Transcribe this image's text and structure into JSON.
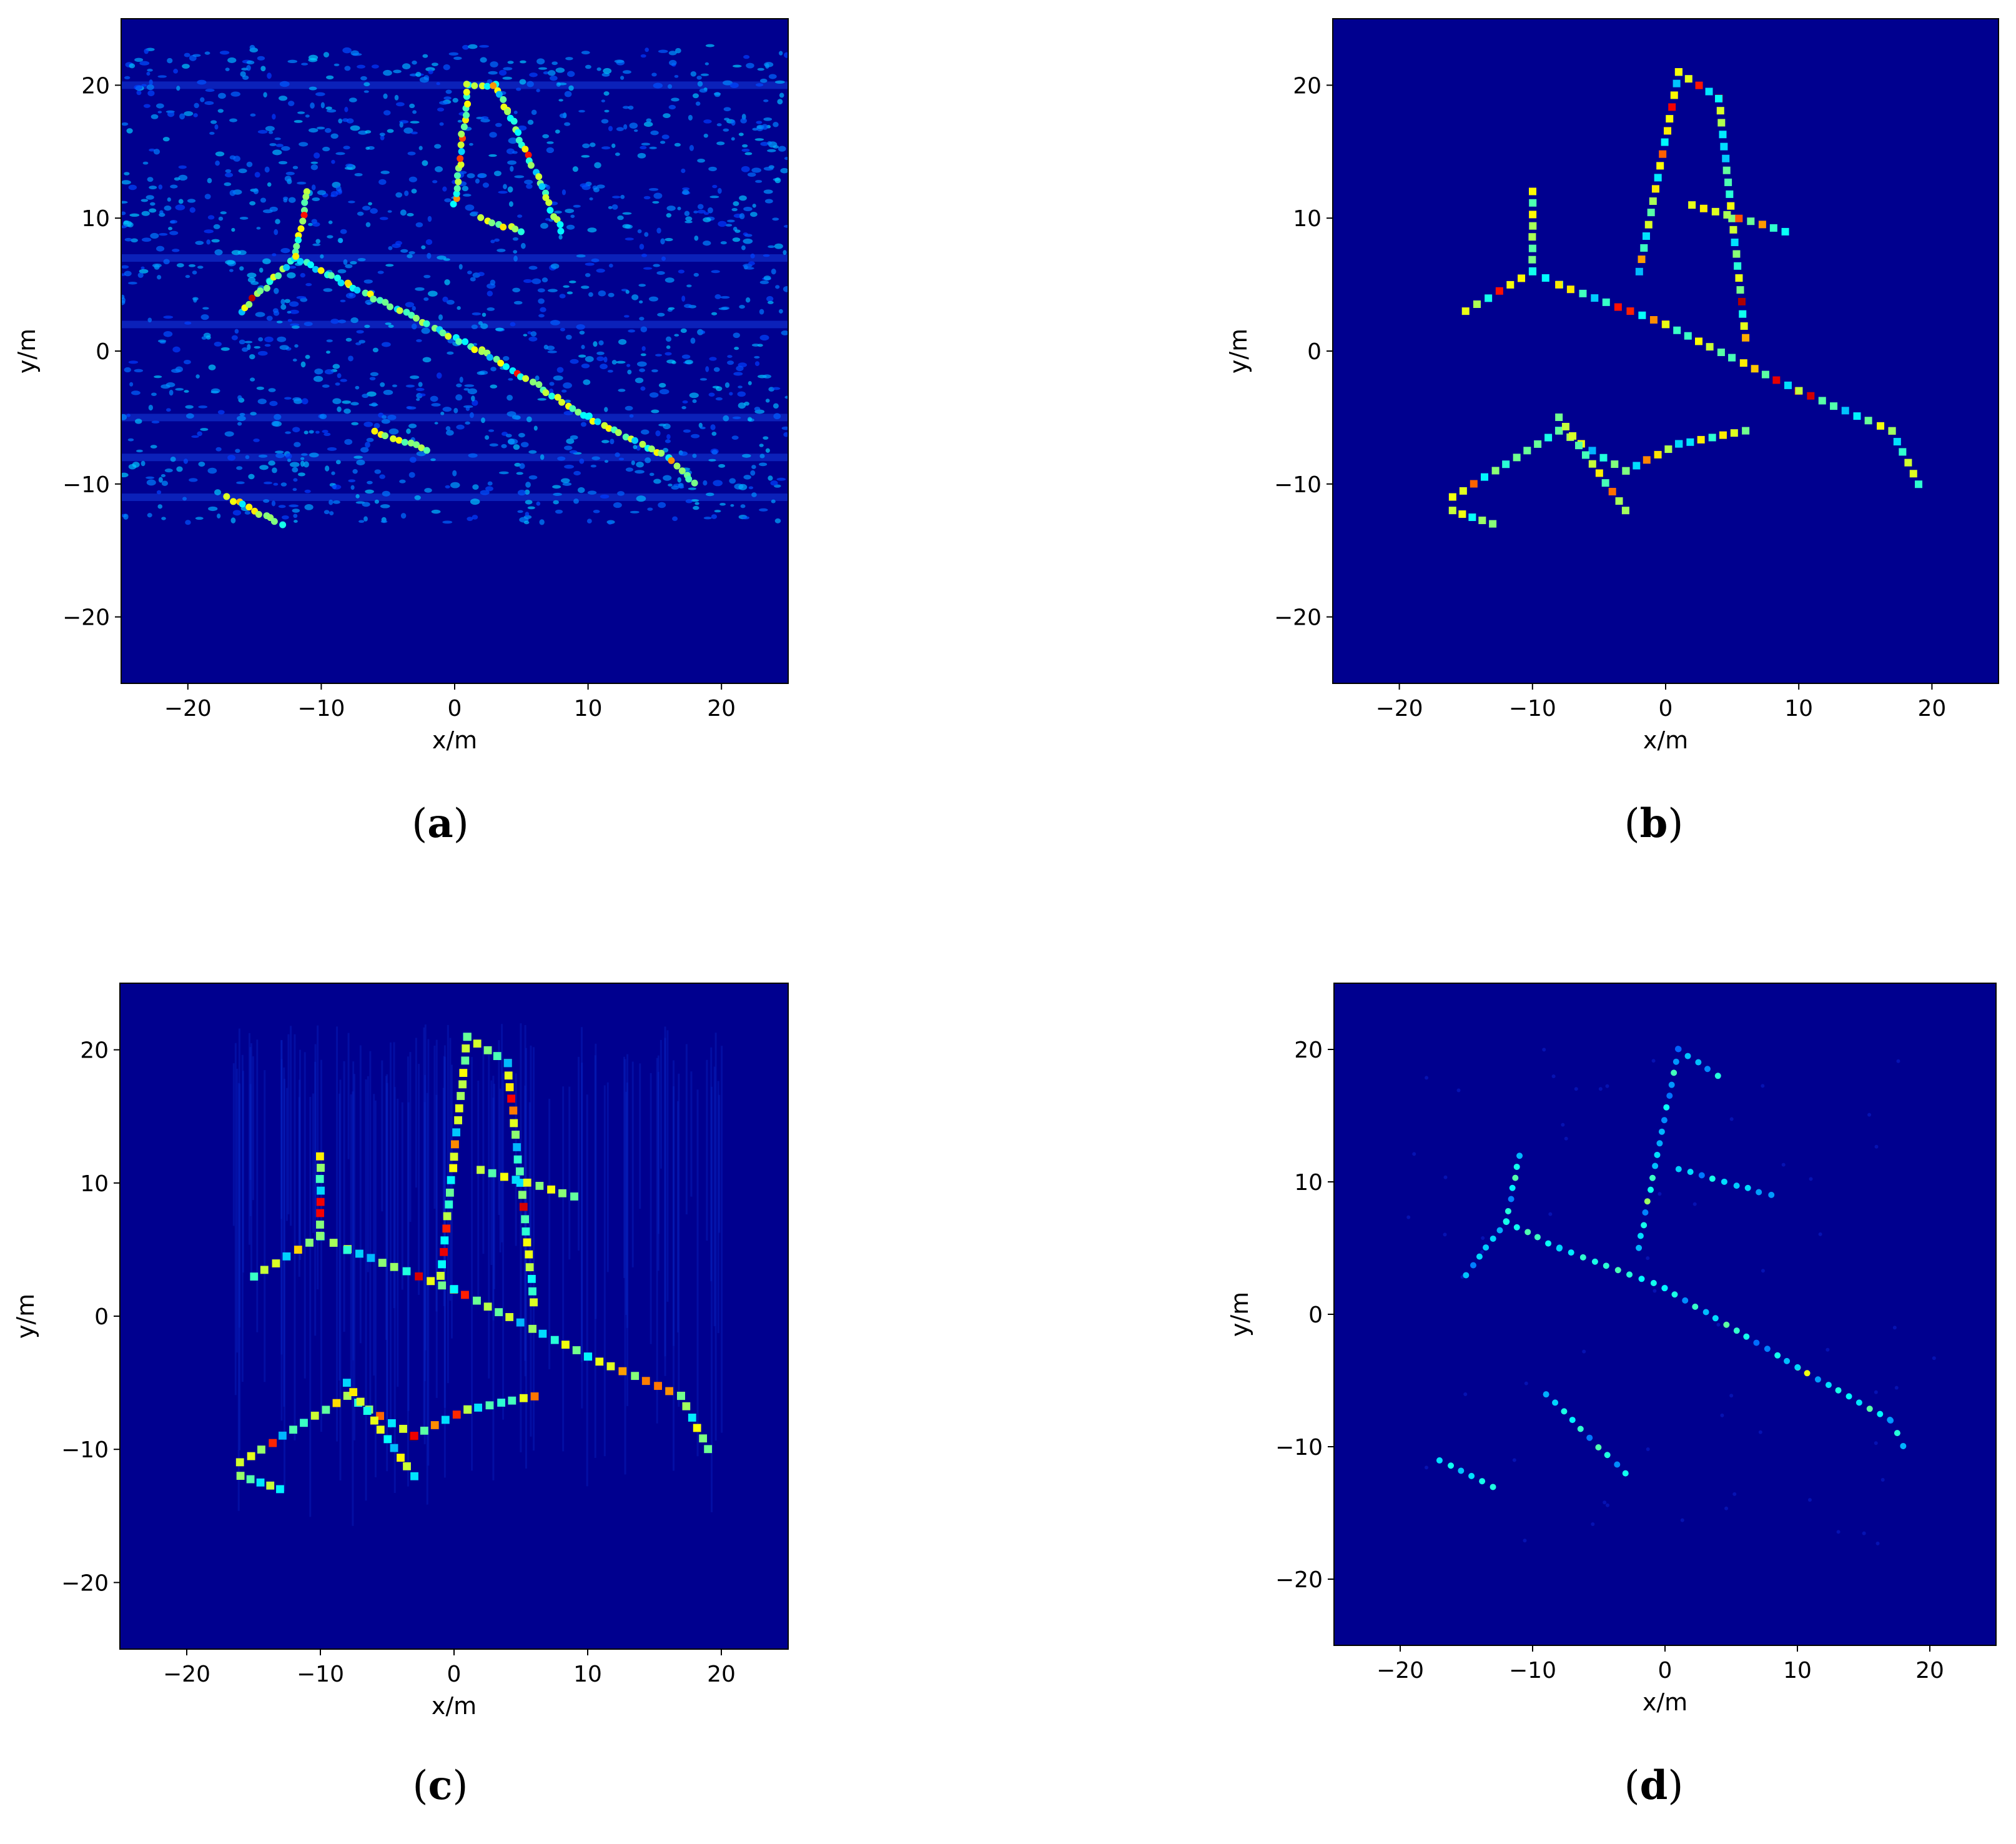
{
  "colors": {
    "background": "#00008f",
    "colormap": "jet"
  },
  "panels": [
    {
      "caption_open": "(",
      "caption_letter": "a",
      "caption_close": ")",
      "xlabel": "x/m",
      "ylabel": "y/m",
      "xticks": [
        "−20",
        "−10",
        "0",
        "10",
        "20"
      ],
      "yticks": [
        "20",
        "10",
        "0",
        "−10",
        "−20"
      ]
    },
    {
      "caption_open": "(",
      "caption_letter": "b",
      "caption_close": ")",
      "xlabel": "x/m",
      "ylabel": "y/m",
      "xticks": [
        "−20",
        "−10",
        "0",
        "10",
        "20"
      ],
      "yticks": [
        "20",
        "10",
        "0",
        "−10",
        "−20"
      ]
    },
    {
      "caption_open": "(",
      "caption_letter": "c",
      "caption_close": ")",
      "xlabel": "x/m",
      "ylabel": "y/m",
      "xticks": [
        "−20",
        "−10",
        "0",
        "10",
        "20"
      ],
      "yticks": [
        "20",
        "10",
        "0",
        "−10",
        "−20"
      ]
    },
    {
      "caption_open": "(",
      "caption_letter": "d",
      "caption_close": ")",
      "xlabel": "x/m",
      "ylabel": "y/m",
      "xticks": [
        "−20",
        "−10",
        "0",
        "10",
        "20"
      ],
      "yticks": [
        "20",
        "10",
        "0",
        "−10",
        "−20"
      ]
    }
  ],
  "chart_data": [
    {
      "type": "heatmap",
      "panel": "a",
      "xlabel": "x/m",
      "ylabel": "y/m",
      "xlim": [
        -25,
        25
      ],
      "ylim": [
        -25,
        25
      ],
      "xticks": [
        -20,
        -10,
        0,
        10,
        20
      ],
      "yticks": [
        20,
        10,
        0,
        -10,
        -20
      ],
      "grid": false,
      "appearance": "speckled, strong horizontal noise streaks",
      "target_outline": [
        [
          [
            -16,
            3
          ],
          [
            -12,
            7
          ],
          [
            -8,
            5
          ],
          [
            2,
            0
          ],
          [
            10,
            -5
          ],
          [
            16,
            -8
          ],
          [
            18,
            -10
          ]
        ],
        [
          [
            -11,
            12
          ],
          [
            -12,
            7
          ]
        ],
        [
          [
            -6,
            -6
          ],
          [
            -2,
            -7.5
          ]
        ],
        [
          [
            -17,
            -11
          ],
          [
            -13,
            -13
          ]
        ],
        [
          [
            0,
            11
          ],
          [
            1,
            20
          ],
          [
            3,
            20
          ],
          [
            4,
            18
          ],
          [
            8,
            9
          ]
        ],
        [
          [
            2,
            10
          ],
          [
            5,
            9
          ]
        ]
      ]
    },
    {
      "type": "heatmap",
      "panel": "b",
      "xlabel": "x/m",
      "ylabel": "y/m",
      "xlim": [
        -25,
        25
      ],
      "ylim": [
        -25,
        25
      ],
      "xticks": [
        -20,
        -10,
        0,
        10,
        20
      ],
      "yticks": [
        20,
        10,
        0,
        -10,
        -20
      ],
      "grid": false,
      "appearance": "sparse clean point scatterers",
      "target_outline": [
        [
          [
            -15,
            3
          ],
          [
            -10,
            6
          ],
          [
            -8,
            5
          ],
          [
            0,
            2
          ],
          [
            10,
            -3
          ],
          [
            17,
            -6
          ],
          [
            19,
            -10
          ]
        ],
        [
          [
            -10,
            12
          ],
          [
            -10,
            6
          ]
        ],
        [
          [
            -16,
            -11
          ],
          [
            -8,
            -6
          ],
          [
            -3,
            -9
          ],
          [
            1,
            -7
          ],
          [
            6,
            -6
          ]
        ],
        [
          [
            -8,
            -5
          ],
          [
            -3,
            -12
          ]
        ],
        [
          [
            -16,
            -12
          ],
          [
            -13,
            -13
          ]
        ],
        [
          [
            -2,
            6
          ],
          [
            1,
            21
          ],
          [
            4,
            19
          ],
          [
            6,
            1
          ]
        ],
        [
          [
            2,
            11
          ],
          [
            9,
            9
          ]
        ]
      ]
    },
    {
      "type": "heatmap",
      "panel": "c",
      "xlabel": "x/m",
      "ylabel": "y/m",
      "xlim": [
        -25,
        25
      ],
      "ylim": [
        -25,
        25
      ],
      "xticks": [
        -20,
        -10,
        0,
        10,
        20
      ],
      "yticks": [
        20,
        10,
        0,
        -10,
        -20
      ],
      "grid": false,
      "appearance": "blocky scatterers with vertical smearing",
      "target_outline": [
        [
          [
            -15,
            3
          ],
          [
            -10,
            6
          ],
          [
            -8,
            5
          ],
          [
            0,
            2
          ],
          [
            10,
            -3
          ],
          [
            17,
            -6
          ],
          [
            19,
            -10
          ]
        ],
        [
          [
            -10,
            12
          ],
          [
            -10,
            6
          ]
        ],
        [
          [
            -16,
            -11
          ],
          [
            -8,
            -6
          ],
          [
            -3,
            -9
          ],
          [
            1,
            -7
          ],
          [
            6,
            -6
          ]
        ],
        [
          [
            -8,
            -5
          ],
          [
            -3,
            -12
          ]
        ],
        [
          [
            -16,
            -12
          ],
          [
            -13,
            -13
          ]
        ],
        [
          [
            -1,
            3
          ],
          [
            1,
            21
          ],
          [
            4,
            19
          ],
          [
            6,
            1
          ]
        ],
        [
          [
            2,
            11
          ],
          [
            9,
            9
          ]
        ]
      ]
    },
    {
      "type": "heatmap",
      "panel": "d",
      "xlabel": "x/m",
      "ylabel": "y/m",
      "xlim": [
        -25,
        25
      ],
      "ylim": [
        -25,
        25
      ],
      "xticks": [
        -20,
        -10,
        0,
        10,
        20
      ],
      "yticks": [
        20,
        10,
        0,
        -10,
        -20
      ],
      "grid": false,
      "appearance": "faint low-amplitude point scatterers",
      "target_outline": [
        [
          [
            -15,
            3
          ],
          [
            -12,
            7
          ],
          [
            -8,
            5
          ],
          [
            0,
            2
          ],
          [
            10,
            -4
          ],
          [
            17,
            -8
          ],
          [
            18,
            -10
          ]
        ],
        [
          [
            -11,
            12
          ],
          [
            -12,
            7
          ]
        ],
        [
          [
            -9,
            -6
          ],
          [
            -3,
            -12
          ]
        ],
        [
          [
            -17,
            -11
          ],
          [
            -13,
            -13
          ]
        ],
        [
          [
            -2,
            5
          ],
          [
            1,
            20
          ],
          [
            4,
            18
          ]
        ],
        [
          [
            1,
            11
          ],
          [
            8,
            9
          ]
        ]
      ]
    }
  ]
}
